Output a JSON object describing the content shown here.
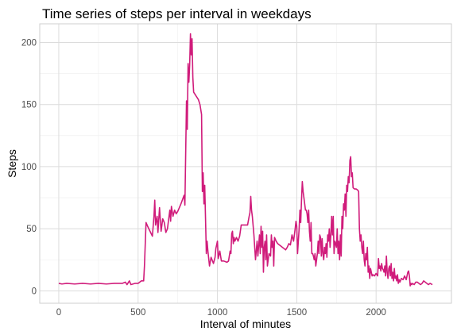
{
  "chart_data": {
    "type": "line",
    "title": "Time series of steps per interval in weekdays",
    "xlabel": "Interval of minutes",
    "ylabel": "Steps",
    "xlim": [
      -120,
      2475
    ],
    "ylim": [
      -10,
      215
    ],
    "xticks": [
      0,
      500,
      1000,
      1500,
      2000
    ],
    "yticks": [
      0,
      50,
      100,
      150,
      200
    ],
    "grid": true,
    "legend": "none",
    "series": [
      {
        "color": "#d01c7b",
        "points": [
          [
            0,
            6
          ],
          [
            20,
            5.5
          ],
          [
            50,
            6
          ],
          [
            100,
            5.5
          ],
          [
            150,
            6
          ],
          [
            200,
            5.5
          ],
          [
            250,
            6
          ],
          [
            300,
            5.5
          ],
          [
            350,
            6
          ],
          [
            400,
            6
          ],
          [
            420,
            7
          ],
          [
            430,
            5
          ],
          [
            445,
            8
          ],
          [
            455,
            5
          ],
          [
            480,
            6
          ],
          [
            500,
            6
          ],
          [
            520,
            8
          ],
          [
            535,
            8
          ],
          [
            540,
            20
          ],
          [
            550,
            55
          ],
          [
            560,
            52
          ],
          [
            575,
            48
          ],
          [
            590,
            44
          ],
          [
            600,
            60
          ],
          [
            605,
            73
          ],
          [
            610,
            53
          ],
          [
            620,
            60
          ],
          [
            625,
            47
          ],
          [
            635,
            67
          ],
          [
            645,
            48
          ],
          [
            655,
            58
          ],
          [
            665,
            55
          ],
          [
            675,
            47
          ],
          [
            685,
            50
          ],
          [
            700,
            65
          ],
          [
            705,
            56
          ],
          [
            710,
            68
          ],
          [
            720,
            60
          ],
          [
            730,
            65
          ],
          [
            740,
            62
          ],
          [
            750,
            64
          ],
          [
            760,
            67
          ],
          [
            770,
            70
          ],
          [
            790,
            77
          ],
          [
            795,
            69
          ],
          [
            805,
            153
          ],
          [
            810,
            130
          ],
          [
            815,
            183
          ],
          [
            820,
            168
          ],
          [
            825,
            182
          ],
          [
            830,
            207
          ],
          [
            835,
            190
          ],
          [
            840,
            203
          ],
          [
            845,
            172
          ],
          [
            850,
            160
          ],
          [
            860,
            158
          ],
          [
            870,
            156
          ],
          [
            880,
            154
          ],
          [
            890,
            150
          ],
          [
            900,
            142
          ],
          [
            905,
            80
          ],
          [
            910,
            95
          ],
          [
            915,
            70
          ],
          [
            920,
            85
          ],
          [
            925,
            58
          ],
          [
            930,
            30
          ],
          [
            935,
            40
          ],
          [
            940,
            32
          ],
          [
            950,
            20
          ],
          [
            960,
            27
          ],
          [
            975,
            22
          ],
          [
            985,
            27
          ],
          [
            990,
            34
          ],
          [
            1000,
            40
          ],
          [
            1005,
            26
          ],
          [
            1015,
            32
          ],
          [
            1025,
            24
          ],
          [
            1040,
            24
          ],
          [
            1060,
            23
          ],
          [
            1070,
            24
          ],
          [
            1080,
            32
          ],
          [
            1085,
            30
          ],
          [
            1090,
            46
          ],
          [
            1095,
            48
          ],
          [
            1100,
            38
          ],
          [
            1105,
            43
          ],
          [
            1110,
            40
          ],
          [
            1120,
            43
          ],
          [
            1130,
            40
          ],
          [
            1140,
            44
          ],
          [
            1150,
            53
          ],
          [
            1160,
            53
          ],
          [
            1170,
            53
          ],
          [
            1180,
            53
          ],
          [
            1190,
            53
          ],
          [
            1200,
            60
          ],
          [
            1205,
            63
          ],
          [
            1210,
            76
          ],
          [
            1215,
            65
          ],
          [
            1220,
            60
          ],
          [
            1230,
            45
          ],
          [
            1240,
            25
          ],
          [
            1250,
            40
          ],
          [
            1255,
            28
          ],
          [
            1265,
            45
          ],
          [
            1270,
            30
          ],
          [
            1275,
            52
          ],
          [
            1280,
            35
          ],
          [
            1285,
            48
          ],
          [
            1290,
            15
          ],
          [
            1295,
            35
          ],
          [
            1300,
            40
          ],
          [
            1305,
            25
          ],
          [
            1310,
            45
          ],
          [
            1315,
            20
          ],
          [
            1325,
            30
          ],
          [
            1335,
            28
          ],
          [
            1340,
            45
          ],
          [
            1345,
            35
          ],
          [
            1350,
            40
          ],
          [
            1355,
            20
          ],
          [
            1360,
            43
          ],
          [
            1370,
            40
          ],
          [
            1380,
            38
          ],
          [
            1390,
            37
          ],
          [
            1400,
            36
          ],
          [
            1410,
            35
          ],
          [
            1420,
            34
          ],
          [
            1430,
            33
          ],
          [
            1440,
            35
          ],
          [
            1450,
            38
          ],
          [
            1460,
            37
          ],
          [
            1470,
            45
          ],
          [
            1480,
            40
          ],
          [
            1490,
            50
          ],
          [
            1495,
            56
          ],
          [
            1500,
            52
          ],
          [
            1505,
            30
          ],
          [
            1510,
            40
          ],
          [
            1515,
            50
          ],
          [
            1520,
            65
          ],
          [
            1525,
            55
          ],
          [
            1530,
            73
          ],
          [
            1535,
            88
          ],
          [
            1540,
            80
          ],
          [
            1545,
            75
          ],
          [
            1550,
            70
          ],
          [
            1555,
            65
          ],
          [
            1560,
            65
          ],
          [
            1565,
            62
          ],
          [
            1570,
            55
          ],
          [
            1575,
            65
          ],
          [
            1580,
            48
          ],
          [
            1585,
            40
          ],
          [
            1590,
            55
          ],
          [
            1595,
            30
          ],
          [
            1600,
            30
          ],
          [
            1605,
            28
          ],
          [
            1610,
            25
          ],
          [
            1615,
            30
          ],
          [
            1620,
            20
          ],
          [
            1625,
            25
          ],
          [
            1630,
            30
          ],
          [
            1635,
            40
          ],
          [
            1640,
            30
          ],
          [
            1645,
            45
          ],
          [
            1650,
            43
          ],
          [
            1655,
            28
          ],
          [
            1660,
            42
          ],
          [
            1665,
            30
          ],
          [
            1670,
            25
          ],
          [
            1675,
            35
          ],
          [
            1680,
            30
          ],
          [
            1685,
            38
          ],
          [
            1690,
            27
          ],
          [
            1695,
            45
          ],
          [
            1700,
            40
          ],
          [
            1705,
            50
          ],
          [
            1710,
            35
          ],
          [
            1715,
            45
          ],
          [
            1720,
            60
          ],
          [
            1725,
            45
          ],
          [
            1730,
            60
          ],
          [
            1735,
            30
          ],
          [
            1740,
            40
          ],
          [
            1745,
            38
          ],
          [
            1750,
            35
          ],
          [
            1755,
            50
          ],
          [
            1760,
            30
          ],
          [
            1765,
            40
          ],
          [
            1770,
            25
          ],
          [
            1775,
            45
          ],
          [
            1780,
            28
          ],
          [
            1785,
            60
          ],
          [
            1790,
            50
          ],
          [
            1795,
            70
          ],
          [
            1800,
            65
          ],
          [
            1805,
            78
          ],
          [
            1810,
            60
          ],
          [
            1815,
            85
          ],
          [
            1820,
            80
          ],
          [
            1825,
            92
          ],
          [
            1830,
            87
          ],
          [
            1835,
            105
          ],
          [
            1840,
            108
          ],
          [
            1845,
            92
          ],
          [
            1850,
            95
          ],
          [
            1855,
            83
          ],
          [
            1865,
            82
          ],
          [
            1875,
            82
          ],
          [
            1885,
            81
          ],
          [
            1890,
            80
          ],
          [
            1895,
            50
          ],
          [
            1900,
            40
          ],
          [
            1905,
            45
          ],
          [
            1910,
            35
          ],
          [
            1915,
            30
          ],
          [
            1920,
            40
          ],
          [
            1925,
            25
          ],
          [
            1930,
            20
          ],
          [
            1935,
            30
          ],
          [
            1940,
            25
          ],
          [
            1945,
            35
          ],
          [
            1950,
            15
          ],
          [
            1955,
            20
          ],
          [
            1960,
            10
          ],
          [
            1965,
            18
          ],
          [
            1970,
            15
          ],
          [
            1975,
            12
          ],
          [
            1980,
            13
          ],
          [
            1990,
            12
          ],
          [
            2000,
            14
          ],
          [
            2010,
            12
          ],
          [
            2015,
            26
          ],
          [
            2020,
            18
          ],
          [
            2025,
            20
          ],
          [
            2030,
            16
          ],
          [
            2035,
            22
          ],
          [
            2040,
            18
          ],
          [
            2045,
            17
          ],
          [
            2050,
            15
          ],
          [
            2055,
            20
          ],
          [
            2060,
            12
          ],
          [
            2065,
            28
          ],
          [
            2070,
            15
          ],
          [
            2075,
            10
          ],
          [
            2080,
            18
          ],
          [
            2085,
            20
          ],
          [
            2090,
            12
          ],
          [
            2095,
            22
          ],
          [
            2100,
            10
          ],
          [
            2105,
            15
          ],
          [
            2110,
            8
          ],
          [
            2115,
            18
          ],
          [
            2120,
            10
          ],
          [
            2125,
            12
          ],
          [
            2130,
            8
          ],
          [
            2135,
            13
          ],
          [
            2140,
            6
          ],
          [
            2145,
            9
          ],
          [
            2150,
            7
          ],
          [
            2160,
            10
          ],
          [
            2170,
            9
          ],
          [
            2180,
            12
          ],
          [
            2190,
            9
          ],
          [
            2200,
            15
          ],
          [
            2205,
            16
          ],
          [
            2210,
            12
          ],
          [
            2215,
            4
          ],
          [
            2220,
            6
          ],
          [
            2225,
            5
          ],
          [
            2230,
            6
          ],
          [
            2240,
            5
          ],
          [
            2250,
            7
          ],
          [
            2260,
            7
          ],
          [
            2270,
            6
          ],
          [
            2280,
            5
          ],
          [
            2290,
            6
          ],
          [
            2300,
            8
          ],
          [
            2310,
            7
          ],
          [
            2320,
            6
          ],
          [
            2330,
            5
          ],
          [
            2340,
            6
          ],
          [
            2355,
            5
          ]
        ]
      }
    ]
  }
}
